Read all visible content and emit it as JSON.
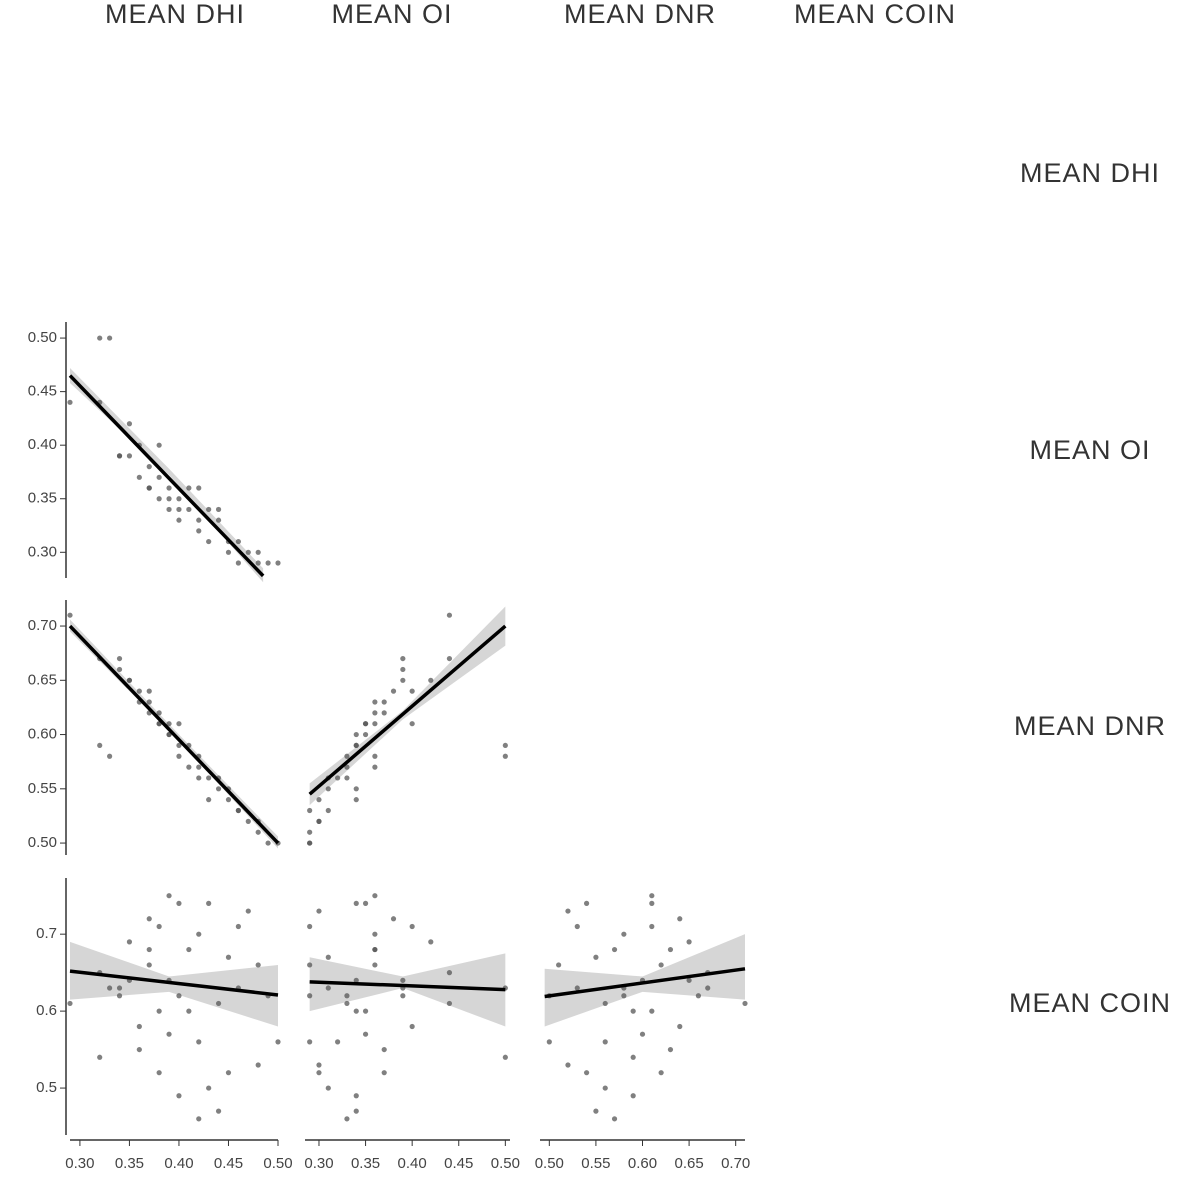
{
  "chart_data": {
    "type": "scatter_matrix",
    "point_color": "#555555",
    "line_color": "#000000",
    "band_color": "#cccccc",
    "variables": [
      {
        "name": "MEAN DHI",
        "values": [
          0.29,
          0.32,
          0.33,
          0.32,
          0.34,
          0.35,
          0.35,
          0.36,
          0.36,
          0.37,
          0.37,
          0.38,
          0.38,
          0.38,
          0.39,
          0.39,
          0.39,
          0.4,
          0.4,
          0.4,
          0.41,
          0.41,
          0.42,
          0.42,
          0.42,
          0.43,
          0.43,
          0.44,
          0.44,
          0.45,
          0.45,
          0.46,
          0.46,
          0.47,
          0.48,
          0.48,
          0.49,
          0.5,
          0.37,
          0.34
        ],
        "xlim": [
          0.29,
          0.5
        ],
        "xticks": [
          {
            "value": 0.3,
            "label": "0.30"
          },
          {
            "value": 0.35,
            "label": "0.35"
          },
          {
            "value": 0.4,
            "label": "0.40"
          },
          {
            "value": 0.45,
            "label": "0.45"
          },
          {
            "value": 0.5,
            "label": "0.50"
          }
        ]
      },
      {
        "name": "MEAN OI",
        "values": [
          0.44,
          0.5,
          0.5,
          0.44,
          0.39,
          0.42,
          0.39,
          0.4,
          0.37,
          0.36,
          0.36,
          0.37,
          0.4,
          0.35,
          0.36,
          0.35,
          0.34,
          0.35,
          0.34,
          0.33,
          0.36,
          0.34,
          0.33,
          0.36,
          0.32,
          0.34,
          0.31,
          0.33,
          0.34,
          0.31,
          0.3,
          0.29,
          0.31,
          0.3,
          0.3,
          0.29,
          0.29,
          0.29,
          0.38,
          0.39
        ],
        "xlim": [
          0.285,
          0.505
        ],
        "xticks": [
          {
            "value": 0.3,
            "label": "0.30"
          },
          {
            "value": 0.35,
            "label": "0.35"
          },
          {
            "value": 0.4,
            "label": "0.40"
          },
          {
            "value": 0.45,
            "label": "0.45"
          },
          {
            "value": 0.5,
            "label": "0.50"
          }
        ],
        "ylim": [
          0.276,
          0.515
        ],
        "yticks": [
          {
            "value": 0.3,
            "label": "0.30"
          },
          {
            "value": 0.35,
            "label": "0.35"
          },
          {
            "value": 0.4,
            "label": "0.40"
          },
          {
            "value": 0.45,
            "label": "0.45"
          },
          {
            "value": 0.5,
            "label": "0.50"
          }
        ]
      },
      {
        "name": "MEAN DNR",
        "values": [
          0.71,
          0.59,
          0.58,
          0.67,
          0.66,
          0.65,
          0.65,
          0.64,
          0.63,
          0.63,
          0.62,
          0.62,
          0.61,
          0.61,
          0.61,
          0.6,
          0.6,
          0.61,
          0.59,
          0.58,
          0.57,
          0.59,
          0.57,
          0.58,
          0.56,
          0.54,
          0.56,
          0.56,
          0.55,
          0.55,
          0.54,
          0.53,
          0.53,
          0.52,
          0.52,
          0.51,
          0.5,
          0.5,
          0.64,
          0.67
        ],
        "xlim": [
          0.49,
          0.71
        ],
        "xticks": [
          {
            "value": 0.5,
            "label": "0.50"
          },
          {
            "value": 0.55,
            "label": "0.55"
          },
          {
            "value": 0.6,
            "label": "0.60"
          },
          {
            "value": 0.65,
            "label": "0.65"
          },
          {
            "value": 0.7,
            "label": "0.70"
          }
        ],
        "ylim": [
          0.489,
          0.724
        ],
        "yticks": [
          {
            "value": 0.5,
            "label": "0.50"
          },
          {
            "value": 0.55,
            "label": "0.55"
          },
          {
            "value": 0.6,
            "label": "0.60"
          },
          {
            "value": 0.65,
            "label": "0.65"
          },
          {
            "value": 0.7,
            "label": "0.70"
          }
        ]
      },
      {
        "name": "MEAN COIN",
        "values": [
          0.61,
          0.54,
          0.63,
          0.65,
          0.62,
          0.69,
          0.64,
          0.58,
          0.55,
          0.68,
          0.66,
          0.52,
          0.71,
          0.6,
          0.75,
          0.57,
          0.64,
          0.74,
          0.49,
          0.62,
          0.68,
          0.6,
          0.46,
          0.7,
          0.56,
          0.74,
          0.5,
          0.61,
          0.47,
          0.67,
          0.52,
          0.71,
          0.63,
          0.73,
          0.53,
          0.66,
          0.62,
          0.56,
          0.72,
          0.63
        ],
        "ylim": [
          0.439,
          0.773
        ],
        "yticks": [
          0.5,
          0.6,
          0.7
        ]
      }
    ],
    "fits": [
      [
        {
          "x": [
            0.29,
            0.485
          ],
          "y": [
            0.465,
            0.278
          ],
          "band_x": [
            0.29,
            0.39,
            0.485
          ],
          "band_lower": [
            0.458,
            0.372,
            0.272
          ],
          "band_upper": [
            0.472,
            0.378,
            0.285
          ]
        }
      ],
      [
        {
          "x": [
            0.29,
            0.5
          ],
          "y": [
            0.7,
            0.5
          ],
          "band_x": [
            0.29,
            0.4,
            0.5
          ],
          "band_lower": [
            0.695,
            0.594,
            0.495
          ],
          "band_upper": [
            0.706,
            0.6,
            0.506
          ]
        },
        {
          "x": [
            0.29,
            0.5
          ],
          "y": [
            0.545,
            0.7
          ],
          "band_x": [
            0.29,
            0.39,
            0.5
          ],
          "band_lower": [
            0.535,
            0.614,
            0.682
          ],
          "band_upper": [
            0.555,
            0.622,
            0.718
          ]
        }
      ],
      [
        {
          "x": [
            0.29,
            0.5
          ],
          "y": [
            0.652,
            0.621
          ],
          "band_x": [
            0.29,
            0.39,
            0.5
          ],
          "band_lower": [
            0.615,
            0.625,
            0.58
          ],
          "band_upper": [
            0.69,
            0.645,
            0.66
          ]
        },
        {
          "x": [
            0.29,
            0.5
          ],
          "y": [
            0.638,
            0.628
          ],
          "band_x": [
            0.29,
            0.39,
            0.5
          ],
          "band_lower": [
            0.6,
            0.63,
            0.58
          ],
          "band_upper": [
            0.67,
            0.645,
            0.675
          ]
        },
        {
          "x": [
            0.495,
            0.71
          ],
          "y": [
            0.619,
            0.655
          ],
          "band_x": [
            0.495,
            0.6,
            0.71
          ],
          "band_lower": [
            0.58,
            0.625,
            0.615
          ],
          "band_upper": [
            0.655,
            0.645,
            0.7
          ]
        }
      ]
    ]
  }
}
